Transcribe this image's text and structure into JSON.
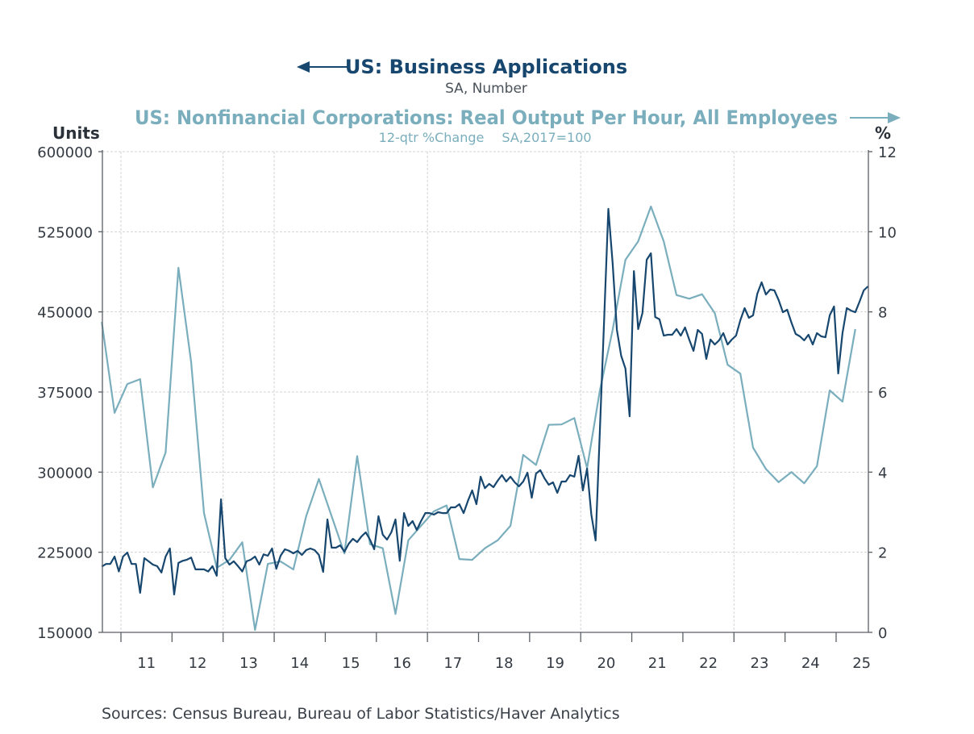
{
  "chart_data": {
    "type": "line",
    "titles": {
      "left_title": "US: Business Applications",
      "left_subtitle": "SA, Number",
      "right_title": "US: Nonfinancial Corporations: Real Output Per Hour, All Employees",
      "right_subtitle_1": "12-qtr %Change",
      "right_subtitle_2": "SA,2017=100"
    },
    "y_left": {
      "label": "Units",
      "range": [
        150000,
        600000
      ],
      "ticks": [
        "150000",
        "225000",
        "300000",
        "375000",
        "450000",
        "525000",
        "600000"
      ]
    },
    "y_right": {
      "label": "%",
      "range": [
        0,
        12
      ],
      "ticks": [
        "0",
        "2",
        "4",
        "6",
        "8",
        "10",
        "12"
      ]
    },
    "x_axis": {
      "range": [
        "2010-08",
        "2025-08"
      ],
      "tick_labels": [
        "11",
        "12",
        "13",
        "14",
        "15",
        "16",
        "17",
        "18",
        "19",
        "20",
        "21",
        "22",
        "23",
        "24",
        "25"
      ]
    },
    "grid": true,
    "colors": {
      "business_applications": "#17476f",
      "productivity": "#7aaebd"
    },
    "series": [
      {
        "name": "US: Business Applications",
        "axis": "left",
        "frequency": "monthly",
        "dates": [
          "2010-08",
          "2010-09",
          "2010-10",
          "2010-11",
          "2010-12",
          "2011-01",
          "2011-02",
          "2011-03",
          "2011-04",
          "2011-05",
          "2011-06",
          "2011-07",
          "2011-08",
          "2011-09",
          "2011-10",
          "2011-11",
          "2011-12",
          "2012-01",
          "2012-02",
          "2012-03",
          "2012-04",
          "2012-05",
          "2012-06",
          "2012-07",
          "2012-08",
          "2012-09",
          "2012-10",
          "2012-11",
          "2012-12",
          "2013-01",
          "2013-02",
          "2013-03",
          "2013-04",
          "2013-05",
          "2013-06",
          "2013-07",
          "2013-08",
          "2013-09",
          "2013-10",
          "2013-11",
          "2013-12",
          "2014-01",
          "2014-02",
          "2014-03",
          "2014-04",
          "2014-05",
          "2014-06",
          "2014-07",
          "2014-08",
          "2014-09",
          "2014-10",
          "2014-11",
          "2014-12",
          "2015-01",
          "2015-02",
          "2015-03",
          "2015-04",
          "2015-05",
          "2015-06",
          "2015-07",
          "2015-08",
          "2015-09",
          "2015-10",
          "2015-11",
          "2015-12",
          "2016-01",
          "2016-02",
          "2016-03",
          "2016-04",
          "2016-05",
          "2016-06",
          "2016-07",
          "2016-08",
          "2016-09",
          "2016-10",
          "2016-11",
          "2016-12",
          "2017-01",
          "2017-02",
          "2017-03",
          "2017-04",
          "2017-05",
          "2017-06",
          "2017-07",
          "2017-08",
          "2017-09",
          "2017-10",
          "2017-11",
          "2017-12",
          "2018-01",
          "2018-02",
          "2018-03",
          "2018-04",
          "2018-05",
          "2018-06",
          "2018-07",
          "2018-08",
          "2018-09",
          "2018-10",
          "2018-11",
          "2018-12",
          "2019-01",
          "2019-02",
          "2019-03",
          "2019-04",
          "2019-05",
          "2019-06",
          "2019-07",
          "2019-08",
          "2019-09",
          "2019-10",
          "2019-11",
          "2019-12",
          "2020-01",
          "2020-02",
          "2020-03",
          "2020-04",
          "2020-05",
          "2020-06",
          "2020-07",
          "2020-08",
          "2020-09",
          "2020-10",
          "2020-11",
          "2020-12",
          "2021-01",
          "2021-02",
          "2021-03",
          "2021-04",
          "2021-05",
          "2021-06",
          "2021-07",
          "2021-08",
          "2021-09",
          "2021-10",
          "2021-11",
          "2021-12",
          "2022-01",
          "2022-02",
          "2022-03",
          "2022-04",
          "2022-05",
          "2022-06",
          "2022-07",
          "2022-08",
          "2022-09",
          "2022-10",
          "2022-11",
          "2022-12",
          "2023-01",
          "2023-02",
          "2023-03",
          "2023-04",
          "2023-05",
          "2023-06",
          "2023-07",
          "2023-08",
          "2023-09",
          "2023-10",
          "2023-11",
          "2023-12",
          "2024-01",
          "2024-02",
          "2024-03",
          "2024-04",
          "2024-05",
          "2024-06",
          "2024-07",
          "2024-08",
          "2024-09",
          "2024-10",
          "2024-11",
          "2024-12",
          "2025-01",
          "2025-02",
          "2025-03",
          "2025-04",
          "2025-05",
          "2025-06",
          "2025-07",
          "2025-08"
        ],
        "values": [
          211500,
          214000,
          214000,
          221000,
          207000,
          221000,
          224700,
          214000,
          214000,
          187000,
          219500,
          216500,
          213400,
          212000,
          206000,
          221000,
          228500,
          185500,
          215000,
          217000,
          218000,
          220000,
          209000,
          209000,
          209000,
          207000,
          212000,
          203000,
          274500,
          219500,
          213400,
          216500,
          212000,
          207000,
          216500,
          218000,
          221000,
          213400,
          223000,
          221700,
          228500,
          209500,
          221700,
          227800,
          226300,
          224000,
          226300,
          222500,
          227000,
          228500,
          227000,
          222500,
          206600,
          255700,
          229300,
          229300,
          231500,
          225500,
          233000,
          237600,
          234500,
          239800,
          243600,
          236800,
          227800,
          258700,
          241400,
          236800,
          243600,
          255700,
          217000,
          261700,
          249700,
          254200,
          245900,
          254200,
          261700,
          261700,
          260200,
          262500,
          261700,
          261700,
          267000,
          267000,
          270000,
          261700,
          273000,
          282900,
          270000,
          295700,
          285000,
          289000,
          285900,
          292000,
          297200,
          291200,
          295700,
          290400,
          286700,
          291200,
          299500,
          276000,
          298700,
          301800,
          294200,
          288200,
          290400,
          280600,
          291200,
          291200,
          297200,
          295700,
          315300,
          282900,
          303300,
          260200,
          236100,
          339000,
          443000,
          546400,
          495800,
          433100,
          409000,
          396900,
          352300,
          488200,
          433900,
          449000,
          498800,
          504900,
          445200,
          443000,
          427800,
          428600,
          428600,
          433900,
          427800,
          435400,
          424100,
          413500,
          433100,
          429400,
          406000,
          424100,
          419500,
          423300,
          430100,
          419500,
          424100,
          427800,
          442200,
          453500,
          444500,
          446800,
          467100,
          477700,
          466300,
          470900,
          470100,
          461100,
          449700,
          452000,
          439900,
          429400,
          427100,
          423300,
          428600,
          419500,
          430100,
          427100,
          426300,
          446800,
          455000,
          392400,
          430100,
          453500,
          451200,
          449700,
          459500,
          470100,
          473900
        ]
      },
      {
        "name": "US: Nonfinancial Corporations: Real Output Per Hour, All Employees",
        "axis": "right",
        "frequency": "quarterly",
        "dates": [
          "2010Q3",
          "2010Q4",
          "2011Q1",
          "2011Q2",
          "2011Q3",
          "2011Q4",
          "2012Q1",
          "2012Q2",
          "2012Q3",
          "2012Q4",
          "2013Q1",
          "2013Q2",
          "2013Q3",
          "2013Q4",
          "2014Q1",
          "2014Q2",
          "2014Q3",
          "2014Q4",
          "2015Q1",
          "2015Q2",
          "2015Q3",
          "2015Q4",
          "2016Q1",
          "2016Q2",
          "2016Q3",
          "2016Q4",
          "2017Q1",
          "2017Q2",
          "2017Q3",
          "2017Q4",
          "2018Q1",
          "2018Q2",
          "2018Q3",
          "2018Q4",
          "2019Q1",
          "2019Q2",
          "2019Q3",
          "2019Q4",
          "2020Q1",
          "2020Q2",
          "2020Q3",
          "2020Q4",
          "2021Q1",
          "2021Q2",
          "2021Q3",
          "2021Q4",
          "2022Q1",
          "2022Q2",
          "2022Q3",
          "2022Q4",
          "2023Q1",
          "2023Q2",
          "2023Q3",
          "2023Q4",
          "2024Q1",
          "2024Q2",
          "2024Q3",
          "2024Q4",
          "2025Q1",
          "2025Q2"
        ],
        "values": [
          7.75,
          5.48,
          6.2,
          6.32,
          3.62,
          4.49,
          9.1,
          6.74,
          2.98,
          1.61,
          1.81,
          2.25,
          0.06,
          1.71,
          1.77,
          1.57,
          2.9,
          3.83,
          2.9,
          1.97,
          4.4,
          2.2,
          2.1,
          0.46,
          2.3,
          2.66,
          3.02,
          3.17,
          1.83,
          1.81,
          2.1,
          2.3,
          2.66,
          4.43,
          4.18,
          5.18,
          5.19,
          5.35,
          4.1,
          6.04,
          7.55,
          9.3,
          9.76,
          10.63,
          9.76,
          8.42,
          8.33,
          8.44,
          7.97,
          6.68,
          6.46,
          4.61,
          4.08,
          3.75,
          4.0,
          3.72,
          4.15,
          6.04,
          5.76,
          7.57
        ]
      }
    ]
  },
  "footer": {
    "sources": "Sources:  Census Bureau, Bureau of Labor Statistics/Haver Analytics"
  }
}
